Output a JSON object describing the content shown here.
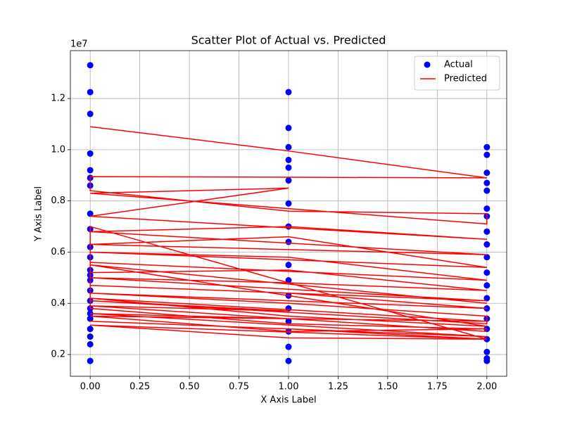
{
  "chart_data": {
    "type": "scatter",
    "title": "Scatter Plot of Actual vs. Predicted",
    "x_label": "X Axis Label",
    "y_label": "Y Axis Label",
    "y_offset_label": "1e7",
    "xlim": [
      -0.1,
      2.1
    ],
    "ylim": [
      1150000,
      13870000
    ],
    "xticks": [
      {
        "value": 0,
        "label": "0.00"
      },
      0.25,
      {
        "value": 0.5,
        "label": "0.50"
      },
      0.75,
      {
        "value": 1,
        "label": "1.00"
      },
      1.25,
      {
        "value": 1.5,
        "label": "1.50"
      },
      1.75,
      {
        "value": 2,
        "label": "2.00"
      }
    ],
    "yticks": [
      {
        "value": 2000000,
        "label": "0.2"
      },
      {
        "value": 4000000,
        "label": "0.4"
      },
      {
        "value": 6000000,
        "label": "0.6"
      },
      {
        "value": 8000000,
        "label": "0.8"
      },
      {
        "value": 10000000,
        "label": "1.0"
      },
      {
        "value": 12000000,
        "label": "1.2"
      }
    ],
    "grid": true,
    "legend": "upper right",
    "x": [
      0,
      1,
      2,
      0,
      0,
      1,
      2,
      2,
      0,
      1,
      0,
      2,
      1,
      0,
      2,
      0,
      1,
      2,
      0,
      1,
      2,
      0,
      0,
      1,
      2,
      1,
      0,
      2,
      0,
      1,
      2,
      0,
      1,
      2,
      2,
      0,
      1,
      0,
      2,
      1,
      0,
      2,
      0,
      1,
      2,
      0,
      1,
      2,
      0,
      0,
      1,
      2,
      1,
      0,
      2,
      0,
      1,
      2,
      0,
      2
    ],
    "series": [
      {
        "name": "Actual",
        "color": "#0000ff",
        "mark": "scatter",
        "values": [
          13300000,
          12250000,
          10100000,
          12250000,
          11400000,
          10850000,
          9800000,
          9100000,
          9850000,
          10100000,
          9200000,
          8700000,
          9600000,
          8900000,
          8400000,
          8600000,
          9300000,
          7700000,
          7500000,
          8800000,
          7400000,
          6900000,
          6200000,
          7900000,
          6800000,
          7000000,
          5800000,
          6300000,
          5300000,
          6400000,
          5800000,
          4900000,
          5500000,
          5200000,
          4700000,
          4500000,
          4900000,
          4100000,
          4200000,
          4300000,
          3800000,
          3800000,
          3400000,
          3800000,
          3400000,
          3000000,
          3300000,
          3000000,
          2700000,
          2400000,
          2900000,
          2600000,
          2300000,
          1750000,
          2100000,
          3600000,
          1750000,
          1850000,
          5100000,
          1750000
        ]
      },
      {
        "name": "Predicted",
        "color": "#ff0000",
        "mark": "line",
        "values": [
          10900000,
          9950000,
          8900000,
          8950000,
          8400000,
          7600000,
          7500000,
          7100000,
          8300000,
          8500000,
          7400000,
          6500000,
          7000000,
          6800000,
          5900000,
          6300000,
          6600000,
          5400000,
          6000000,
          5800000,
          4900000,
          5600000,
          5200000,
          5300000,
          4500000,
          4800000,
          5000000,
          4100000,
          4700000,
          4400000,
          3800000,
          4400000,
          4000000,
          3500000,
          3200000,
          4100000,
          3700000,
          3900000,
          2900000,
          3400000,
          3600000,
          2700000,
          3300000,
          3000000,
          2600000,
          3150000,
          2650000,
          2600000,
          7000000,
          3800000,
          3200000,
          3000000,
          2900000,
          3500000,
          3300000,
          4200000,
          3500000,
          3100000,
          5500000,
          4000000
        ]
      }
    ]
  }
}
